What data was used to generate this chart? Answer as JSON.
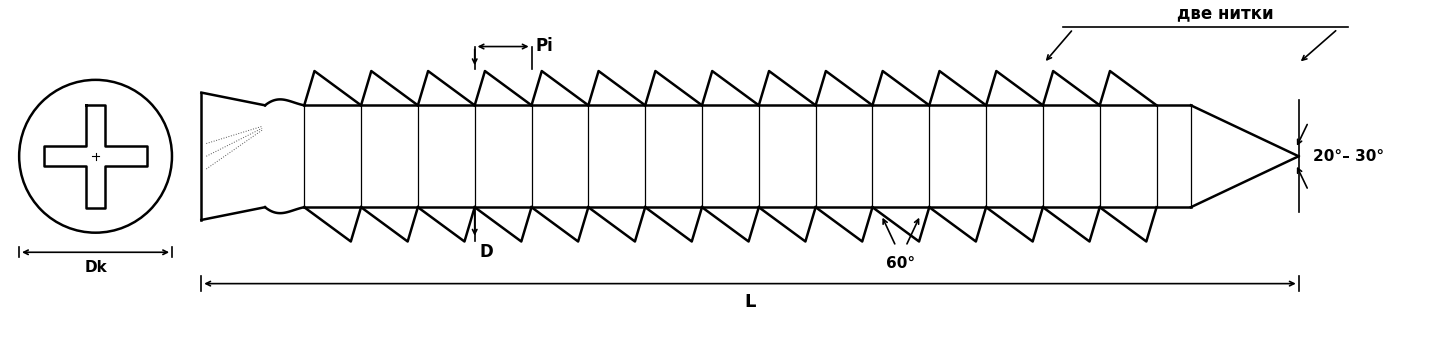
{
  "bg_color": "#ffffff",
  "line_color": "#000000",
  "fig_width": 14.51,
  "fig_height": 3.48,
  "dpi": 100,
  "labels": {
    "Dk": "Dk",
    "D": "D",
    "L": "L",
    "Pi": "Pi",
    "angle1": "60°",
    "angle2": "20°– 30°",
    "две нитки": "две нитки"
  }
}
